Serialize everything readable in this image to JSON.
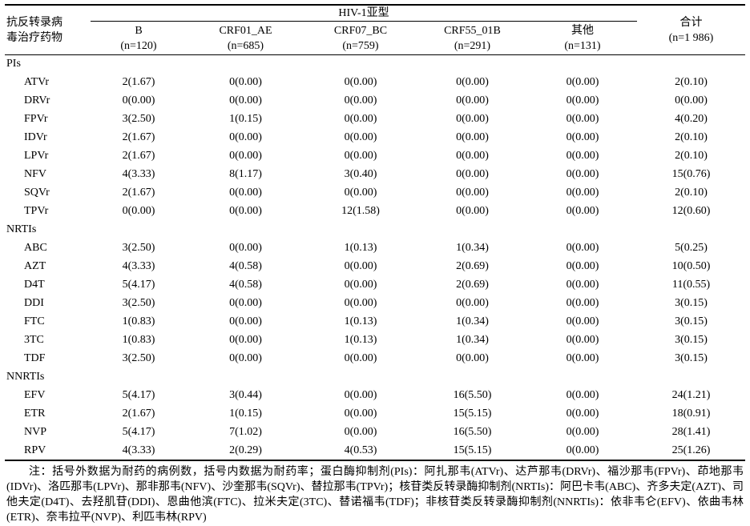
{
  "table": {
    "row_header": {
      "line1": "抗反转录病",
      "line2": "毒治疗药物"
    },
    "group_header": "HIV-1亚型",
    "subtype_headers": [
      {
        "name": "B",
        "n": "(n=120)"
      },
      {
        "name": "CRF01_AE",
        "n": "(n=685)"
      },
      {
        "name": "CRF07_BC",
        "n": "(n=759)"
      },
      {
        "name": "CRF55_01B",
        "n": "(n=291)"
      },
      {
        "name": "其他",
        "n": "(n=131)"
      }
    ],
    "total_header": {
      "name": "合计",
      "n": "(n=1 986)"
    },
    "sections": [
      {
        "label": "PIs",
        "rows": [
          {
            "drug": "ATVr",
            "values": [
              "2(1.67)",
              "0(0.00)",
              "0(0.00)",
              "0(0.00)",
              "0(0.00)",
              "2(0.10)"
            ]
          },
          {
            "drug": "DRVr",
            "values": [
              "0(0.00)",
              "0(0.00)",
              "0(0.00)",
              "0(0.00)",
              "0(0.00)",
              "0(0.00)"
            ]
          },
          {
            "drug": "FPVr",
            "values": [
              "3(2.50)",
              "1(0.15)",
              "0(0.00)",
              "0(0.00)",
              "0(0.00)",
              "4(0.20)"
            ]
          },
          {
            "drug": "IDVr",
            "values": [
              "2(1.67)",
              "0(0.00)",
              "0(0.00)",
              "0(0.00)",
              "0(0.00)",
              "2(0.10)"
            ]
          },
          {
            "drug": "LPVr",
            "values": [
              "2(1.67)",
              "0(0.00)",
              "0(0.00)",
              "0(0.00)",
              "0(0.00)",
              "2(0.10)"
            ]
          },
          {
            "drug": "NFV",
            "values": [
              "4(3.33)",
              "8(1.17)",
              "3(0.40)",
              "0(0.00)",
              "0(0.00)",
              "15(0.76)"
            ]
          },
          {
            "drug": "SQVr",
            "values": [
              "2(1.67)",
              "0(0.00)",
              "0(0.00)",
              "0(0.00)",
              "0(0.00)",
              "2(0.10)"
            ]
          },
          {
            "drug": "TPVr",
            "values": [
              "0(0.00)",
              "0(0.00)",
              "12(1.58)",
              "0(0.00)",
              "0(0.00)",
              "12(0.60)"
            ]
          }
        ]
      },
      {
        "label": "NRTIs",
        "rows": [
          {
            "drug": "ABC",
            "values": [
              "3(2.50)",
              "0(0.00)",
              "1(0.13)",
              "1(0.34)",
              "0(0.00)",
              "5(0.25)"
            ]
          },
          {
            "drug": "AZT",
            "values": [
              "4(3.33)",
              "4(0.58)",
              "0(0.00)",
              "2(0.69)",
              "0(0.00)",
              "10(0.50)"
            ]
          },
          {
            "drug": "D4T",
            "values": [
              "5(4.17)",
              "4(0.58)",
              "0(0.00)",
              "2(0.69)",
              "0(0.00)",
              "11(0.55)"
            ]
          },
          {
            "drug": "DDI",
            "values": [
              "3(2.50)",
              "0(0.00)",
              "0(0.00)",
              "0(0.00)",
              "0(0.00)",
              "3(0.15)"
            ]
          },
          {
            "drug": "FTC",
            "values": [
              "1(0.83)",
              "0(0.00)",
              "1(0.13)",
              "1(0.34)",
              "0(0.00)",
              "3(0.15)"
            ]
          },
          {
            "drug": "3TC",
            "values": [
              "1(0.83)",
              "0(0.00)",
              "1(0.13)",
              "1(0.34)",
              "0(0.00)",
              "3(0.15)"
            ]
          },
          {
            "drug": "TDF",
            "values": [
              "3(2.50)",
              "0(0.00)",
              "0(0.00)",
              "0(0.00)",
              "0(0.00)",
              "3(0.15)"
            ]
          }
        ]
      },
      {
        "label": "NNRTIs",
        "rows": [
          {
            "drug": "EFV",
            "values": [
              "5(4.17)",
              "3(0.44)",
              "0(0.00)",
              "16(5.50)",
              "0(0.00)",
              "24(1.21)"
            ]
          },
          {
            "drug": "ETR",
            "values": [
              "2(1.67)",
              "1(0.15)",
              "0(0.00)",
              "15(5.15)",
              "0(0.00)",
              "18(0.91)"
            ]
          },
          {
            "drug": "NVP",
            "values": [
              "5(4.17)",
              "7(1.02)",
              "0(0.00)",
              "16(5.50)",
              "0(0.00)",
              "28(1.41)"
            ]
          },
          {
            "drug": "RPV",
            "values": [
              "4(3.33)",
              "2(0.29)",
              "4(0.53)",
              "15(5.15)",
              "0(0.00)",
              "25(1.26)"
            ]
          }
        ]
      }
    ]
  },
  "note": "注：括号外数据为耐药的病例数，括号内数据为耐药率；蛋白酶抑制剂(PIs)：阿扎那韦(ATVr)、达芦那韦(DRVr)、福沙那韦(FPVr)、茚地那韦(IDVr)、洛匹那韦(LPVr)、那非那韦(NFV)、沙奎那韦(SQVr)、替拉那韦(TPVr)；核苷类反转录酶抑制剂(NRTIs)：阿巴卡韦(ABC)、齐多夫定(AZT)、司他夫定(D4T)、去羟肌苷(DDI)、恩曲他滨(FTC)、拉米夫定(3TC)、替诺福韦(TDF)；非核苷类反转录酶抑制剂(NNRTIs)：依非韦仑(EFV)、依曲韦林(ETR)、奈韦拉平(NVP)、利匹韦林(RPV)"
}
